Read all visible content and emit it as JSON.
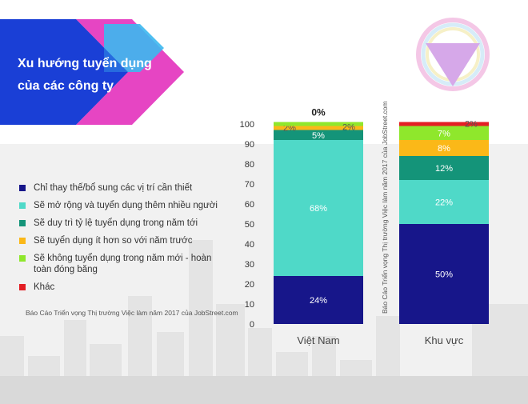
{
  "title": {
    "line1": "Xu hướng tuyển dụng",
    "line2": "của các công ty"
  },
  "source_note": "Báo Cáo Triển vọng Thị trường Việc làm năm 2017 của JobStreet.com",
  "legend": [
    {
      "label": "Chỉ thay thế/bổ sung các vị trí cần thiết",
      "color": "#17168a"
    },
    {
      "label": "Sẽ mở rộng và tuyển dụng thêm nhiều người",
      "color": "#4fd9c8"
    },
    {
      "label": "Sẽ duy trì tỷ lệ tuyển dụng trong năm tới",
      "color": "#149479"
    },
    {
      "label": "Sẽ tuyển dụng ít hơn so với năm trước",
      "color": "#fbb818"
    },
    {
      "label": "Sẽ không tuyển dụng trong năm mới - hoàn toàn đóng băng",
      "color": "#8fe72c"
    },
    {
      "label": "Khác",
      "color": "#e31e24"
    }
  ],
  "chart_data": {
    "type": "bar",
    "stacked": true,
    "categories": [
      "Việt Nam",
      "Khu vực"
    ],
    "ylim": [
      0,
      100
    ],
    "yticks": [
      "0",
      "10",
      "20",
      "30",
      "40",
      "50",
      "60",
      "70",
      "80",
      "90",
      "100"
    ],
    "series": [
      {
        "name": "Chỉ thay thế/bổ sung các vị trí cần thiết",
        "values": [
          24,
          50
        ],
        "labels": [
          "24%",
          "50%"
        ]
      },
      {
        "name": "Sẽ mở rộng và tuyển dụng thêm nhiều người",
        "values": [
          68,
          22
        ],
        "labels": [
          "68%",
          "22%"
        ]
      },
      {
        "name": "Sẽ duy trì tỷ lệ tuyển dụng trong năm tới",
        "values": [
          5,
          12
        ],
        "labels": [
          "5%",
          "12%"
        ]
      },
      {
        "name": "Sẽ tuyển dụng ít hơn so với năm trước",
        "values": [
          2,
          8
        ],
        "labels": [
          "2%",
          "8%"
        ]
      },
      {
        "name": "Sẽ không tuyển dụng trong năm mới - hoàn toàn đóng băng",
        "values": [
          2,
          7
        ],
        "labels": [
          "2%",
          "7%"
        ]
      },
      {
        "name": "Khác",
        "values": [
          0,
          2
        ],
        "labels": [
          "0%",
          "2%"
        ]
      }
    ],
    "colors": [
      "#17168a",
      "#4fd9c8",
      "#149479",
      "#fbb818",
      "#8fe72c",
      "#e31e24"
    ]
  }
}
